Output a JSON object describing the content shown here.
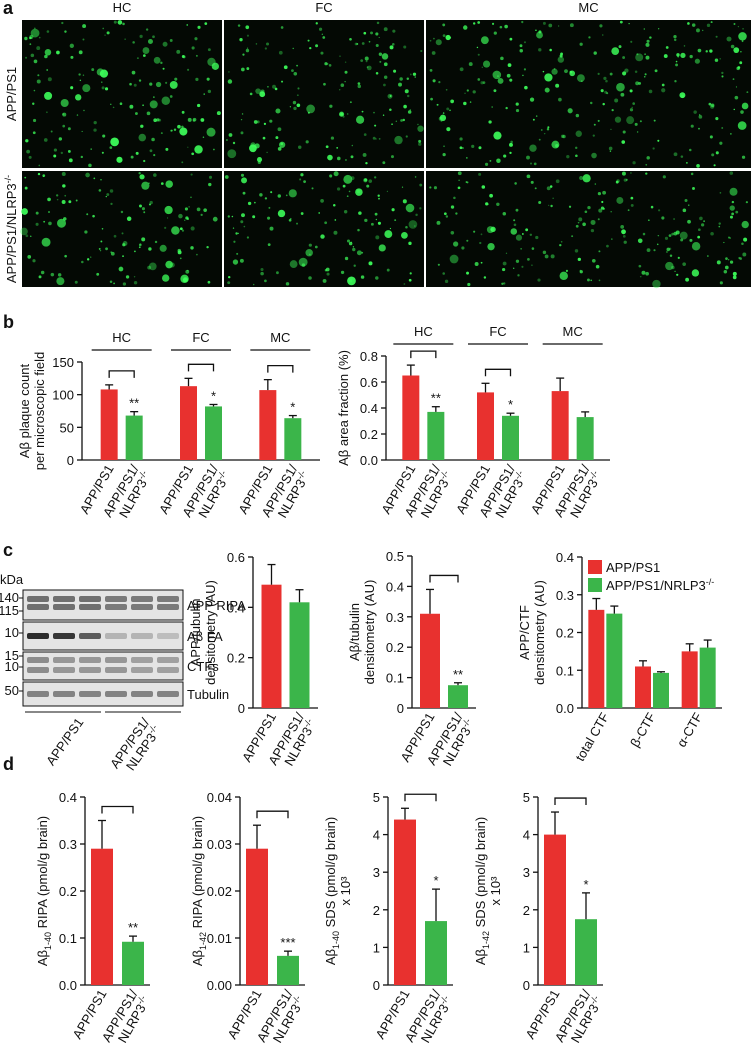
{
  "panel_labels": [
    "a",
    "b",
    "c",
    "d"
  ],
  "micrographs": {
    "columns": [
      "HC",
      "FC",
      "MC"
    ],
    "rows": [
      "APP/PS1",
      "APP/PS1/NLRP3-/-"
    ]
  },
  "blot": {
    "unit": "kDa",
    "markers": [
      140,
      115,
      10,
      15,
      10,
      50
    ],
    "bands": [
      "APP RIPA",
      "Aβ FA",
      "CTFs",
      "Tubulin"
    ],
    "groups": [
      "APP/PS1",
      "APP/PS1/NLRP3-/-"
    ]
  },
  "chart_data": [
    {
      "type": "bar",
      "categories": [
        "HC",
        "FC",
        "MC"
      ],
      "ylabel": [
        "Aβ plaque count",
        "per microscopic field"
      ],
      "ylim": [
        0,
        150
      ],
      "yticks": [
        0,
        50,
        100,
        150
      ],
      "series": [
        {
          "name": "APP/PS1",
          "color": "#e8312f",
          "values": [
            108,
            113,
            107
          ],
          "errors": [
            7,
            12,
            16
          ]
        },
        {
          "name": "APP/PS1/NLRP3-/-",
          "color": "#3bb54a",
          "values": [
            68,
            82,
            64
          ],
          "errors": [
            6,
            3,
            4
          ]
        }
      ],
      "significance": [
        "**",
        "*",
        "*"
      ]
    },
    {
      "type": "bar",
      "categories": [
        "HC",
        "FC",
        "MC"
      ],
      "ylabel": [
        "Aβ area fraction (%)"
      ],
      "ylim": [
        0,
        0.8
      ],
      "yticks": [
        {
          "value": 0,
          "label": "0.0"
        },
        0.2,
        0.4,
        0.6,
        0.8
      ],
      "series": [
        {
          "name": "APP/PS1",
          "color": "#e8312f",
          "values": [
            0.65,
            0.52,
            0.53
          ],
          "errors": [
            0.08,
            0.07,
            0.1
          ]
        },
        {
          "name": "APP/PS1/NLRP3-/-",
          "color": "#3bb54a",
          "values": [
            0.37,
            0.34,
            0.33
          ],
          "errors": [
            0.04,
            0.02,
            0.04
          ]
        }
      ],
      "significance": [
        "**",
        "*",
        null
      ]
    },
    {
      "type": "bar",
      "ylabel": [
        "APP/tubulin",
        "densitometry (AU)"
      ],
      "ylim": [
        0,
        0.6
      ],
      "yticks": [
        0,
        0.2,
        0.4,
        0.6
      ],
      "series": [
        {
          "name": "APP/PS1",
          "color": "#e8312f",
          "values": [
            0.49
          ],
          "errors": [
            0.08
          ]
        },
        {
          "name": "APP/PS1/NLRP3-/-",
          "color": "#3bb54a",
          "values": [
            0.42
          ],
          "errors": [
            0.05
          ]
        }
      ],
      "significance": [
        null
      ]
    },
    {
      "type": "bar",
      "ylabel": [
        "Aβ/tubulin",
        "densitometry (AU)"
      ],
      "ylim": [
        0,
        0.5
      ],
      "yticks": [
        0,
        0.1,
        0.2,
        0.3,
        0.4,
        0.5
      ],
      "series": [
        {
          "name": "APP/PS1",
          "color": "#e8312f",
          "values": [
            0.31
          ],
          "errors": [
            0.08
          ]
        },
        {
          "name": "APP/PS1/NLRP3-/-",
          "color": "#3bb54a",
          "values": [
            0.075
          ],
          "errors": [
            0.008
          ]
        }
      ],
      "significance": [
        "**"
      ]
    },
    {
      "type": "bar",
      "categories": [
        "total CTF",
        "β-CTF",
        "α-CTF"
      ],
      "ylabel": [
        "APP/CTF",
        "densitometry (AU)"
      ],
      "ylim": [
        0,
        0.4
      ],
      "yticks": [
        {
          "value": 0,
          "label": "0.0"
        },
        0.1,
        0.2,
        0.3,
        0.4
      ],
      "legend": "top-right",
      "series": [
        {
          "name": "APP/PS1",
          "color": "#e8312f",
          "values": [
            0.26,
            0.11,
            0.15
          ],
          "errors": [
            0.03,
            0.015,
            0.02
          ]
        },
        {
          "name": "APP/PS1/NRLP3-/-",
          "color": "#3bb54a",
          "values": [
            0.25,
            0.093,
            0.16
          ],
          "errors": [
            0.02,
            0.003,
            0.02
          ]
        }
      ]
    },
    {
      "type": "bar",
      "ylabel": [
        "Aβ1-40 RIPA (pmol/g brain)"
      ],
      "ylim": [
        0,
        0.4
      ],
      "yticks": [
        {
          "value": 0,
          "label": "0.0"
        },
        0.1,
        0.2,
        0.3,
        0.4
      ],
      "series": [
        {
          "name": "APP/PS1",
          "color": "#e8312f",
          "values": [
            0.29
          ],
          "errors": [
            0.06
          ]
        },
        {
          "name": "APP/PS1/NLRP3-/-",
          "color": "#3bb54a",
          "values": [
            0.092
          ],
          "errors": [
            0.012
          ]
        }
      ],
      "significance": [
        "**"
      ]
    },
    {
      "type": "bar",
      "ylabel": [
        "Aβ1-42 RIPA (pmol/g brain)"
      ],
      "ylim": [
        0,
        0.04
      ],
      "yticks": [
        {
          "value": 0,
          "label": "0.00"
        },
        0.01,
        0.02,
        0.03,
        0.04
      ],
      "series": [
        {
          "name": "APP/PS1",
          "color": "#e8312f",
          "values": [
            0.029
          ],
          "errors": [
            0.005
          ]
        },
        {
          "name": "APP/PS1/NLRP3-/-",
          "color": "#3bb54a",
          "values": [
            0.0062
          ],
          "errors": [
            0.001
          ]
        }
      ],
      "significance": [
        "***"
      ]
    },
    {
      "type": "bar",
      "ylabel": [
        "Aβ1-40 SDS (pmol/g brain)",
        "x 10³"
      ],
      "ylim": [
        0,
        5
      ],
      "yticks": [
        0,
        1,
        2,
        3,
        4,
        5
      ],
      "series": [
        {
          "name": "APP/PS1",
          "color": "#e8312f",
          "values": [
            4.4
          ],
          "errors": [
            0.3
          ]
        },
        {
          "name": "APP/PS1/NLRP3-/-",
          "color": "#3bb54a",
          "values": [
            1.7
          ],
          "errors": [
            0.85
          ]
        }
      ],
      "significance": [
        "*"
      ]
    },
    {
      "type": "bar",
      "ylabel": [
        "Aβ1-42 SDS (pmol/g brain)",
        "x 10³"
      ],
      "ylim": [
        0,
        5
      ],
      "yticks": [
        0,
        1,
        2,
        3,
        4,
        5
      ],
      "series": [
        {
          "name": "APP/PS1",
          "color": "#e8312f",
          "values": [
            4.0
          ],
          "errors": [
            0.6
          ]
        },
        {
          "name": "APP/PS1/NLRP3-/-",
          "color": "#3bb54a",
          "values": [
            1.75
          ],
          "errors": [
            0.7
          ]
        }
      ],
      "significance": [
        "*"
      ]
    }
  ]
}
